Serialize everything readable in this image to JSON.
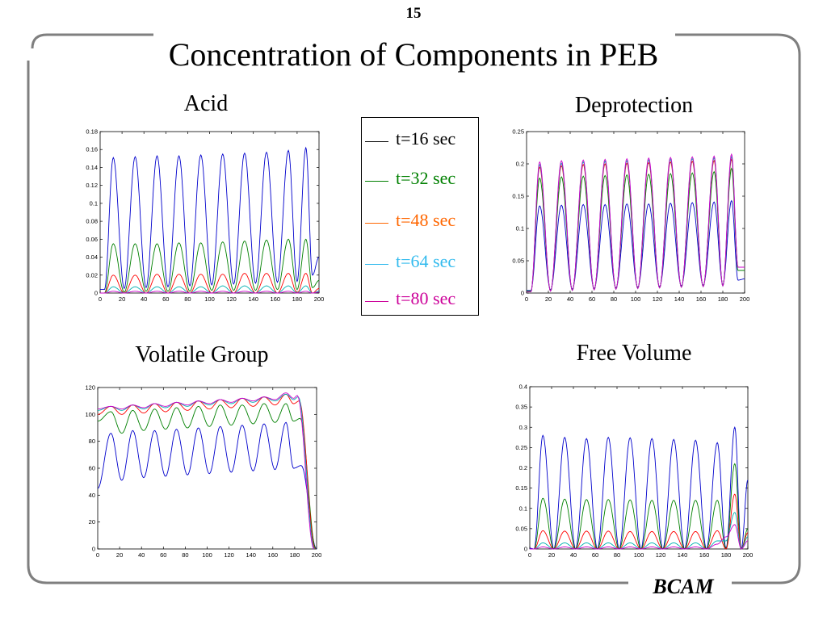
{
  "page": {
    "number": "15",
    "title": "Concentration of Components in PEB",
    "footer": "BCAM"
  },
  "colors": {
    "frame": "#7f7f7f",
    "t16": "#0000cc",
    "t32": "#008000",
    "t48": "#ff0000",
    "t64": "#00b0b0",
    "t80": "#cc00cc"
  },
  "legend": {
    "items": [
      {
        "label": "t=16 sec",
        "line_color": "#000000",
        "text_color": "#000000"
      },
      {
        "label": "t=32 sec",
        "line_color": "#008000",
        "text_color": "#008000"
      },
      {
        "label": "t=48 sec",
        "line_color": "#ff6600",
        "text_color": "#ff6600"
      },
      {
        "label": "t=64 sec",
        "line_color": "#33bbee",
        "text_color": "#33bbee"
      },
      {
        "label": "t=80 sec",
        "line_color": "#cc0099",
        "text_color": "#cc0099"
      }
    ]
  },
  "chart_data": [
    {
      "id": "acid",
      "type": "line",
      "title": "Acid",
      "xlim": [
        0,
        200
      ],
      "ylim": [
        0,
        0.18
      ],
      "xticks": [
        0,
        20,
        40,
        60,
        80,
        100,
        120,
        140,
        160,
        180,
        200
      ],
      "yticks": [
        0,
        0.02,
        0.04,
        0.06,
        0.08,
        0.1,
        0.12,
        0.14,
        0.16,
        0.18
      ],
      "ytick_labels": [
        "0",
        "0.02",
        "0.04",
        "0.06",
        "0.08",
        "0.1",
        "0.12",
        "0.14",
        "0.16",
        "0.18"
      ],
      "peaks_x": [
        12,
        32,
        52,
        72,
        92,
        112,
        132,
        152,
        172,
        188
      ],
      "series": [
        {
          "color": "#0000cc",
          "min": [
            0.004,
            0.005,
            0.006,
            0.007,
            0.008,
            0.009,
            0.01,
            0.011,
            0.012,
            0.013,
            0.02
          ],
          "max": [
            0.151,
            0.152,
            0.153,
            0.153,
            0.154,
            0.155,
            0.156,
            0.157,
            0.159,
            0.162
          ],
          "start": 0.004,
          "end": 0.04
        },
        {
          "color": "#008000",
          "min": [
            0.0,
            0.001,
            0.002,
            0.002,
            0.002,
            0.003,
            0.003,
            0.003,
            0.004,
            0.004,
            0.006
          ],
          "max": [
            0.055,
            0.055,
            0.055,
            0.056,
            0.056,
            0.057,
            0.058,
            0.059,
            0.06,
            0.06
          ],
          "start": 0.0,
          "end": 0.014
        },
        {
          "color": "#ff0000",
          "min": [
            0,
            0,
            0,
            0,
            0,
            0,
            0,
            0,
            0,
            0,
            0
          ],
          "max": [
            0.02,
            0.02,
            0.021,
            0.021,
            0.021,
            0.021,
            0.022,
            0.022,
            0.022,
            0.022
          ],
          "start": 0.0,
          "end": 0.005
        },
        {
          "color": "#00b0b0",
          "min": [
            0,
            0,
            0,
            0,
            0,
            0,
            0,
            0,
            0,
            0,
            0
          ],
          "max": [
            0.007,
            0.007,
            0.007,
            0.007,
            0.007,
            0.008,
            0.008,
            0.008,
            0.008,
            0.008
          ],
          "start": 0.0,
          "end": 0.002
        },
        {
          "color": "#cc00cc",
          "min": [
            0,
            0,
            0,
            0,
            0,
            0,
            0,
            0,
            0,
            0,
            0
          ],
          "max": [
            0.002,
            0.002,
            0.002,
            0.002,
            0.002,
            0.002,
            0.002,
            0.002,
            0.002,
            0.002
          ],
          "start": 0.0,
          "end": 0.001
        }
      ]
    },
    {
      "id": "deprotection",
      "type": "line",
      "title": "Deprotection",
      "xlim": [
        0,
        200
      ],
      "ylim": [
        0,
        0.25
      ],
      "xticks": [
        0,
        20,
        40,
        60,
        80,
        100,
        120,
        140,
        160,
        180,
        200
      ],
      "yticks": [
        0,
        0.05,
        0.1,
        0.15,
        0.2,
        0.25
      ],
      "ytick_labels": [
        "0",
        "0.05",
        "0.1",
        "0.15",
        "0.2",
        "0.25"
      ],
      "peaks_x": [
        12,
        32,
        52,
        72,
        92,
        112,
        132,
        152,
        172,
        188
      ],
      "series": [
        {
          "color": "#0000cc",
          "min": [
            0.004,
            0.005,
            0.006,
            0.007,
            0.008,
            0.009,
            0.01,
            0.011,
            0.012,
            0.013,
            0.02
          ],
          "max": [
            0.135,
            0.136,
            0.137,
            0.137,
            0.138,
            0.138,
            0.139,
            0.14,
            0.141,
            0.143
          ],
          "start": 0.004,
          "end": 0.022
        },
        {
          "color": "#008000",
          "min": [
            0.003,
            0.004,
            0.005,
            0.006,
            0.007,
            0.008,
            0.009,
            0.01,
            0.011,
            0.012,
            0.035
          ],
          "max": [
            0.178,
            0.18,
            0.181,
            0.182,
            0.183,
            0.184,
            0.185,
            0.186,
            0.188,
            0.193
          ],
          "start": 0.003,
          "end": 0.035
        },
        {
          "color": "#ff0000",
          "min": [
            0.002,
            0.003,
            0.004,
            0.005,
            0.006,
            0.007,
            0.008,
            0.009,
            0.01,
            0.011,
            0.04
          ],
          "max": [
            0.195,
            0.197,
            0.199,
            0.2,
            0.201,
            0.202,
            0.203,
            0.204,
            0.205,
            0.207
          ],
          "start": 0.002,
          "end": 0.04
        },
        {
          "color": "#00b0b0",
          "min": [
            0.002,
            0.003,
            0.004,
            0.005,
            0.006,
            0.007,
            0.008,
            0.009,
            0.01,
            0.011,
            0.04
          ],
          "max": [
            0.199,
            0.201,
            0.203,
            0.204,
            0.205,
            0.206,
            0.207,
            0.208,
            0.209,
            0.211
          ],
          "start": 0.002,
          "end": 0.04
        },
        {
          "color": "#cc00cc",
          "min": [
            0.002,
            0.003,
            0.004,
            0.005,
            0.006,
            0.007,
            0.008,
            0.009,
            0.01,
            0.011,
            0.04
          ],
          "max": [
            0.203,
            0.205,
            0.206,
            0.207,
            0.208,
            0.209,
            0.21,
            0.211,
            0.212,
            0.215
          ],
          "start": 0.002,
          "end": 0.04
        }
      ]
    },
    {
      "id": "volatile",
      "type": "line",
      "title": "Volatile Group",
      "xlim": [
        0,
        200
      ],
      "ylim": [
        0,
        120
      ],
      "xticks": [
        0,
        20,
        40,
        60,
        80,
        100,
        120,
        140,
        160,
        180,
        200
      ],
      "yticks": [
        0,
        20,
        40,
        60,
        80,
        100,
        120
      ],
      "ytick_labels": [
        "0",
        "20",
        "40",
        "60",
        "80",
        "100",
        "120"
      ],
      "peaks_x": [
        12,
        32,
        52,
        72,
        92,
        112,
        132,
        152,
        172
      ],
      "drop": {
        "x_start": 186,
        "x_end": 200
      },
      "series": [
        {
          "color": "#0000cc",
          "max": [
            86,
            88,
            88,
            89,
            90,
            91,
            92,
            93,
            94
          ],
          "min": [
            51,
            53,
            54,
            55,
            56,
            57,
            58,
            59,
            60
          ],
          "start": 45,
          "end": 0
        },
        {
          "color": "#008000",
          "max": [
            102,
            103,
            104,
            105,
            106,
            107,
            107,
            108,
            108
          ],
          "min": [
            86,
            88,
            89,
            90,
            91,
            92,
            93,
            94,
            95
          ],
          "start": 95,
          "end": 0
        },
        {
          "color": "#ff0000",
          "max": [
            106,
            107,
            108,
            109,
            110,
            111,
            112,
            113,
            115
          ],
          "min": [
            100,
            101,
            102,
            103,
            104,
            105,
            106,
            107,
            108
          ],
          "start": 100,
          "end": 0
        },
        {
          "color": "#00b0b0",
          "max": [
            106,
            107,
            108,
            109,
            110,
            111,
            112,
            113,
            115
          ],
          "min": [
            103,
            104,
            105,
            106,
            107,
            108,
            109,
            110,
            111
          ],
          "start": 103,
          "end": 0
        },
        {
          "color": "#cc00cc",
          "max": [
            106,
            107,
            108,
            109,
            110,
            111,
            112,
            113,
            116
          ],
          "min": [
            104,
            105,
            106,
            107,
            108,
            109,
            110,
            111,
            112
          ],
          "start": 104,
          "end": 0
        }
      ]
    },
    {
      "id": "freevolume",
      "type": "line",
      "title": "Free Volume",
      "xlim": [
        0,
        200
      ],
      "ylim": [
        0,
        0.4
      ],
      "xticks": [
        0,
        20,
        40,
        60,
        80,
        100,
        120,
        140,
        160,
        180,
        200
      ],
      "yticks": [
        0,
        0.05,
        0.1,
        0.15,
        0.2,
        0.25,
        0.3,
        0.35,
        0.4
      ],
      "ytick_labels": [
        "0",
        "0.05",
        "0.1",
        "0.15",
        "0.2",
        "0.25",
        "0.3",
        "0.35",
        "0.4"
      ],
      "peaks_x": [
        12,
        32,
        52,
        72,
        92,
        112,
        132,
        152,
        172,
        188
      ],
      "series": [
        {
          "color": "#0000cc",
          "min": [
            0.0,
            0.0,
            0.0,
            0.0,
            0.0,
            0.0,
            0.0,
            0.0,
            0.0,
            0.0,
            0.0
          ],
          "max": [
            0.28,
            0.275,
            0.272,
            0.275,
            0.274,
            0.272,
            0.27,
            0.268,
            0.262,
            0.3
          ],
          "start": 0.002,
          "end": 0.17
        },
        {
          "color": "#008000",
          "min": [
            0,
            0,
            0,
            0,
            0,
            0,
            0,
            0,
            0,
            0,
            0
          ],
          "max": [
            0.125,
            0.123,
            0.122,
            0.122,
            0.121,
            0.12,
            0.12,
            0.12,
            0.12,
            0.21
          ],
          "start": 0.0,
          "end": 0.05
        },
        {
          "color": "#ff0000",
          "min": [
            0,
            0,
            0,
            0,
            0,
            0,
            0,
            0,
            0,
            0,
            0
          ],
          "max": [
            0.045,
            0.044,
            0.044,
            0.044,
            0.043,
            0.043,
            0.043,
            0.043,
            0.045,
            0.135
          ],
          "start": 0.0,
          "end": 0.04
        },
        {
          "color": "#00b0b0",
          "min": [
            0,
            0,
            0,
            0,
            0,
            0,
            0,
            0,
            0,
            0.02,
            0
          ],
          "max": [
            0.015,
            0.015,
            0.015,
            0.015,
            0.015,
            0.015,
            0.015,
            0.015,
            0.02,
            0.09
          ],
          "start": 0.0,
          "end": 0.03
        },
        {
          "color": "#cc00cc",
          "min": [
            0,
            0,
            0,
            0,
            0,
            0,
            0,
            0,
            0,
            0.03,
            0
          ],
          "max": [
            0.005,
            0.005,
            0.005,
            0.005,
            0.005,
            0.005,
            0.005,
            0.005,
            0.012,
            0.06
          ],
          "start": 0.0,
          "end": 0.02
        }
      ]
    }
  ]
}
